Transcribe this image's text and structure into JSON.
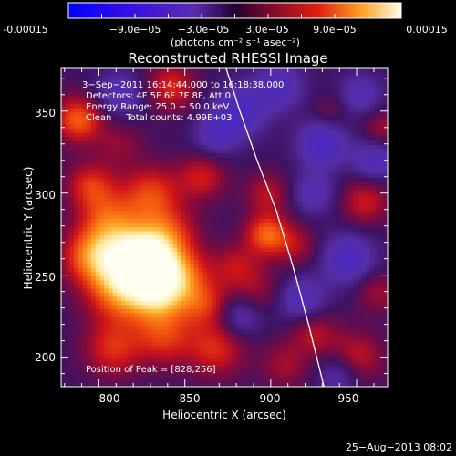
{
  "colorbar": {
    "tick_labels": [
      "-0.00015",
      "−9.0e−05",
      "−3.0e−05",
      "3.0e−05",
      "9.0e−05",
      "0.00015"
    ],
    "units": "(photons cm⁻² s⁻¹ asec⁻²)"
  },
  "info": {
    "time_range": "3−Sep−2011 16:14:44.000 to 16:18:38.000",
    "detectors": "Detectors: 4F 5F 6F 7F 8F, Att 0",
    "energy_range": "Energy Range: 25.0 − 50.0 keV",
    "clean_counts": "Clean     Total counts: 4.99E+03",
    "peak": "Position of Peak = [828,256]"
  },
  "footer": {
    "date": "25−Aug−2013 08:02"
  },
  "chart_data": {
    "type": "heatmap",
    "title": "Reconstructed RHESSI Image",
    "xlabel": "Heliocentric X (arcsec)",
    "ylabel": "Heliocentric Y (arcsec)",
    "xlim": [
      778,
      968
    ],
    "ylim": [
      182,
      376
    ],
    "x_ticks": [
      800,
      850,
      900,
      950
    ],
    "y_ticks": [
      200,
      250,
      300,
      350
    ],
    "value_range": [
      -0.00015,
      0.00015
    ],
    "peak_position": [
      828,
      256
    ],
    "limb_curve": {
      "x": [
        874,
        882,
        892,
        903,
        913,
        922,
        931
      ],
      "y": [
        376,
        350,
        320,
        290,
        255,
        220,
        182
      ]
    },
    "sources": [
      {
        "x": 828,
        "y": 256,
        "v": 1.0,
        "r": 10
      },
      {
        "x": 818,
        "y": 262,
        "v": 0.75,
        "r": 14
      },
      {
        "x": 835,
        "y": 238,
        "v": 0.6,
        "r": 12
      },
      {
        "x": 812,
        "y": 240,
        "v": 0.55,
        "r": 14
      },
      {
        "x": 848,
        "y": 250,
        "v": 0.5,
        "r": 12
      },
      {
        "x": 795,
        "y": 262,
        "v": 0.5,
        "r": 12
      },
      {
        "x": 840,
        "y": 275,
        "v": 0.45,
        "r": 12
      },
      {
        "x": 805,
        "y": 285,
        "v": 0.4,
        "r": 12
      },
      {
        "x": 830,
        "y": 300,
        "v": 0.45,
        "r": 12
      },
      {
        "x": 795,
        "y": 305,
        "v": 0.4,
        "r": 10
      },
      {
        "x": 860,
        "y": 310,
        "v": 0.35,
        "r": 10
      },
      {
        "x": 788,
        "y": 345,
        "v": 0.55,
        "r": 10
      },
      {
        "x": 842,
        "y": 365,
        "v": 0.4,
        "r": 10
      },
      {
        "x": 812,
        "y": 330,
        "v": 0.2,
        "r": 10
      },
      {
        "x": 808,
        "y": 205,
        "v": 0.4,
        "r": 12
      },
      {
        "x": 838,
        "y": 212,
        "v": 0.4,
        "r": 12
      },
      {
        "x": 862,
        "y": 232,
        "v": 0.35,
        "r": 10
      },
      {
        "x": 868,
        "y": 205,
        "v": 0.4,
        "r": 12
      },
      {
        "x": 880,
        "y": 255,
        "v": 0.3,
        "r": 10
      },
      {
        "x": 898,
        "y": 275,
        "v": 0.55,
        "r": 9
      },
      {
        "x": 898,
        "y": 300,
        "v": 0.3,
        "r": 9
      },
      {
        "x": 915,
        "y": 268,
        "v": 0.25,
        "r": 9
      },
      {
        "x": 893,
        "y": 240,
        "v": 0.2,
        "r": 10
      },
      {
        "x": 925,
        "y": 215,
        "v": 0.3,
        "r": 10
      },
      {
        "x": 908,
        "y": 195,
        "v": 0.25,
        "r": 10
      },
      {
        "x": 955,
        "y": 295,
        "v": 0.35,
        "r": 10
      },
      {
        "x": 950,
        "y": 200,
        "v": 0.35,
        "r": 11
      },
      {
        "x": 962,
        "y": 240,
        "v": 0.25,
        "r": 9
      },
      {
        "x": 965,
        "y": 340,
        "v": 0.25,
        "r": 8
      },
      {
        "x": 935,
        "y": 350,
        "v": 0.15,
        "r": 8
      },
      {
        "x": 930,
        "y": 330,
        "v": -0.45,
        "r": 10
      },
      {
        "x": 945,
        "y": 260,
        "v": -0.4,
        "r": 11
      },
      {
        "x": 960,
        "y": 320,
        "v": -0.35,
        "r": 9
      },
      {
        "x": 882,
        "y": 350,
        "v": -0.4,
        "r": 11
      },
      {
        "x": 905,
        "y": 365,
        "v": -0.35,
        "r": 10
      },
      {
        "x": 868,
        "y": 335,
        "v": -0.3,
        "r": 9
      },
      {
        "x": 812,
        "y": 360,
        "v": -0.3,
        "r": 10
      },
      {
        "x": 918,
        "y": 235,
        "v": -0.35,
        "r": 10
      },
      {
        "x": 882,
        "y": 225,
        "v": -0.3,
        "r": 9
      },
      {
        "x": 940,
        "y": 190,
        "v": -0.3,
        "r": 9
      },
      {
        "x": 952,
        "y": 360,
        "v": -0.3,
        "r": 9
      },
      {
        "x": 925,
        "y": 300,
        "v": -0.3,
        "r": 9
      }
    ]
  }
}
